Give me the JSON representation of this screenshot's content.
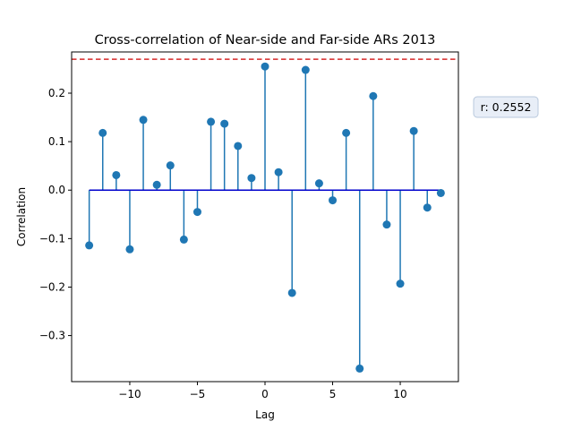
{
  "chart_data": {
    "type": "stem",
    "title": "Cross-correlation of Near-side and Far-side ARs 2013",
    "xlabel": "Lag",
    "ylabel": "Correlation",
    "xlim": [
      -14.3,
      14.3
    ],
    "ylim": [
      -0.395,
      0.285
    ],
    "xticks": [
      -10,
      -5,
      0,
      5,
      10
    ],
    "xtick_labels": [
      "−10",
      "−5",
      "0",
      "5",
      "10"
    ],
    "yticks": [
      -0.3,
      -0.2,
      -0.1,
      0.0,
      0.1,
      0.2
    ],
    "ytick_labels": [
      "−0.3",
      "−0.2",
      "−0.1",
      "0.0",
      "0.1",
      "0.2"
    ],
    "x": [
      -13,
      -12,
      -11,
      -10,
      -9,
      -8,
      -7,
      -6,
      -5,
      -4,
      -3,
      -2,
      -1,
      0,
      1,
      2,
      3,
      4,
      5,
      6,
      7,
      8,
      9,
      10,
      11,
      12,
      13
    ],
    "values": [
      -0.114,
      0.118,
      0.031,
      -0.122,
      0.145,
      0.011,
      0.051,
      -0.102,
      -0.045,
      0.141,
      0.137,
      0.091,
      0.025,
      0.255,
      0.037,
      -0.212,
      0.248,
      0.014,
      -0.021,
      0.118,
      -0.368,
      0.194,
      -0.071,
      -0.193,
      0.122,
      -0.036,
      -0.006
    ],
    "reference_line": {
      "y": 0.27,
      "style": "dashed",
      "color": "#d62728"
    },
    "baseline": {
      "y": 0,
      "color": "#0000cc"
    },
    "stem_color": "#1f77b4",
    "annotation": "r: 0.2552",
    "grid": false
  }
}
